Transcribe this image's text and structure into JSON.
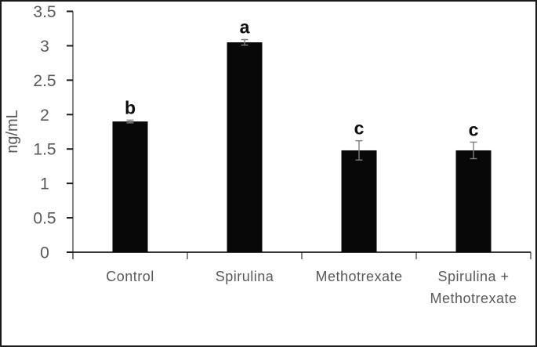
{
  "chart_data": {
    "type": "bar",
    "title": "",
    "xlabel": "",
    "ylabel": "ng/mL",
    "categories": [
      "Control",
      "Spirulina",
      "Methotrexate",
      "Spirulina + Methotrexate"
    ],
    "category_label_lines": [
      [
        "Control"
      ],
      [
        "Spirulina"
      ],
      [
        "Methotrexate"
      ],
      [
        "Spirulina +",
        "Methotrexate"
      ]
    ],
    "values": [
      1.9,
      3.05,
      1.48,
      1.48
    ],
    "error_bars": [
      0.02,
      0.04,
      0.14,
      0.12
    ],
    "sig_letters": [
      "b",
      "a",
      "c",
      "c"
    ],
    "ylim": [
      0,
      3.5
    ],
    "ytick_step": 0.5,
    "ytick_labels": [
      "0",
      "0.5",
      "1",
      "1.5",
      "2",
      "2.5",
      "3",
      "3.5"
    ],
    "grid": false,
    "legend": null,
    "colors": {
      "bar_fill": "#080808",
      "error_bar": "#7f7f7f",
      "x_axis_line": "#1a1a1a",
      "y_axis_line": "#696969",
      "y_tick_mark": "#1a1a1a",
      "x_tick_mark": "#696969",
      "label_text": "#595959",
      "letter_text": "#0d0d0d",
      "figure_border": "#1a1a1a"
    }
  }
}
